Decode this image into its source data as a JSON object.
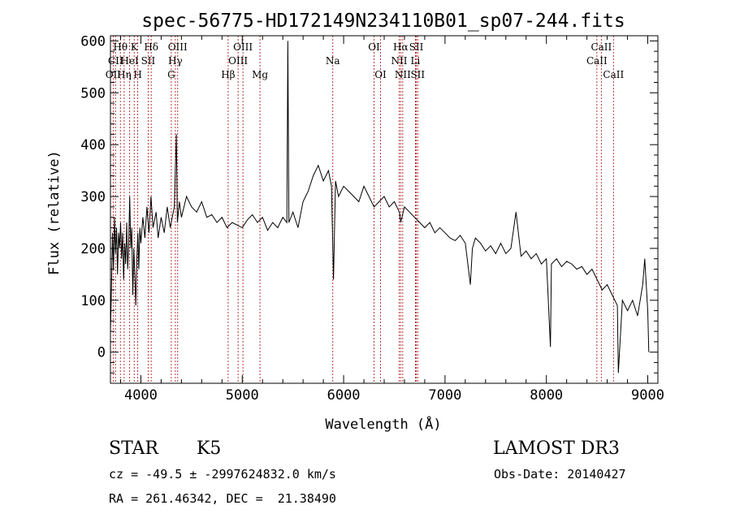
{
  "chart_data": {
    "type": "line",
    "title": "spec-56775-HD172149N234110B01_sp07-244.fits",
    "xlabel": "Wavelength (Å)",
    "ylabel": "Flux (relative)",
    "xlim": [
      3700,
      9100
    ],
    "ylim": [
      -60,
      610
    ],
    "x_ticks": [
      4000,
      5000,
      6000,
      7000,
      8000,
      9000
    ],
    "y_ticks": [
      0,
      100,
      200,
      300,
      400,
      500,
      600
    ],
    "grid": false,
    "series": [
      {
        "values": [
          [
            3700,
            40
          ],
          [
            3710,
            120
          ],
          [
            3720,
            230
          ],
          [
            3730,
            160
          ],
          [
            3740,
            260
          ],
          [
            3750,
            190
          ],
          [
            3760,
            240
          ],
          [
            3770,
            150
          ],
          [
            3780,
            230
          ],
          [
            3790,
            200
          ],
          [
            3800,
            250
          ],
          [
            3810,
            180
          ],
          [
            3820,
            230
          ],
          [
            3830,
            140
          ],
          [
            3840,
            210
          ],
          [
            3850,
            170
          ],
          [
            3860,
            250
          ],
          [
            3870,
            160
          ],
          [
            3880,
            210
          ],
          [
            3890,
            300
          ],
          [
            3900,
            200
          ],
          [
            3910,
            240
          ],
          [
            3920,
            110
          ],
          [
            3930,
            200
          ],
          [
            3940,
            150
          ],
          [
            3950,
            90
          ],
          [
            3960,
            180
          ],
          [
            3970,
            230
          ],
          [
            3980,
            160
          ],
          [
            3990,
            240
          ],
          [
            4000,
            210
          ],
          [
            4020,
            260
          ],
          [
            4040,
            220
          ],
          [
            4060,
            280
          ],
          [
            4080,
            230
          ],
          [
            4100,
            300
          ],
          [
            4120,
            240
          ],
          [
            4150,
            270
          ],
          [
            4170,
            220
          ],
          [
            4200,
            260
          ],
          [
            4230,
            230
          ],
          [
            4260,
            280
          ],
          [
            4290,
            240
          ],
          [
            4310,
            260
          ],
          [
            4330,
            280
          ],
          [
            4350,
            420
          ],
          [
            4360,
            250
          ],
          [
            4380,
            290
          ],
          [
            4400,
            260
          ],
          [
            4450,
            300
          ],
          [
            4500,
            280
          ],
          [
            4550,
            270
          ],
          [
            4600,
            290
          ],
          [
            4650,
            260
          ],
          [
            4700,
            265
          ],
          [
            4750,
            250
          ],
          [
            4800,
            260
          ],
          [
            4850,
            240
          ],
          [
            4900,
            250
          ],
          [
            4950,
            245
          ],
          [
            5000,
            240
          ],
          [
            5050,
            255
          ],
          [
            5100,
            265
          ],
          [
            5150,
            250
          ],
          [
            5200,
            260
          ],
          [
            5250,
            235
          ],
          [
            5300,
            250
          ],
          [
            5350,
            240
          ],
          [
            5400,
            260
          ],
          [
            5440,
            250
          ],
          [
            5450,
            600
          ],
          [
            5460,
            250
          ],
          [
            5500,
            270
          ],
          [
            5550,
            240
          ],
          [
            5600,
            290
          ],
          [
            5650,
            310
          ],
          [
            5700,
            340
          ],
          [
            5750,
            360
          ],
          [
            5800,
            330
          ],
          [
            5850,
            350
          ],
          [
            5880,
            320
          ],
          [
            5900,
            140
          ],
          [
            5920,
            330
          ],
          [
            5950,
            300
          ],
          [
            6000,
            320
          ],
          [
            6050,
            310
          ],
          [
            6100,
            300
          ],
          [
            6150,
            290
          ],
          [
            6200,
            320
          ],
          [
            6250,
            300
          ],
          [
            6300,
            280
          ],
          [
            6350,
            290
          ],
          [
            6400,
            300
          ],
          [
            6450,
            280
          ],
          [
            6500,
            290
          ],
          [
            6550,
            270
          ],
          [
            6563,
            250
          ],
          [
            6600,
            280
          ],
          [
            6650,
            270
          ],
          [
            6700,
            260
          ],
          [
            6750,
            250
          ],
          [
            6800,
            240
          ],
          [
            6850,
            250
          ],
          [
            6900,
            230
          ],
          [
            6950,
            240
          ],
          [
            7000,
            230
          ],
          [
            7050,
            220
          ],
          [
            7100,
            215
          ],
          [
            7150,
            225
          ],
          [
            7200,
            210
          ],
          [
            7250,
            130
          ],
          [
            7270,
            200
          ],
          [
            7300,
            220
          ],
          [
            7350,
            210
          ],
          [
            7400,
            195
          ],
          [
            7450,
            205
          ],
          [
            7500,
            190
          ],
          [
            7550,
            210
          ],
          [
            7600,
            190
          ],
          [
            7650,
            200
          ],
          [
            7700,
            270
          ],
          [
            7750,
            185
          ],
          [
            7800,
            195
          ],
          [
            7850,
            180
          ],
          [
            7900,
            190
          ],
          [
            7950,
            170
          ],
          [
            8000,
            180
          ],
          [
            8040,
            10
          ],
          [
            8050,
            170
          ],
          [
            8100,
            180
          ],
          [
            8150,
            165
          ],
          [
            8200,
            175
          ],
          [
            8250,
            170
          ],
          [
            8300,
            160
          ],
          [
            8350,
            165
          ],
          [
            8400,
            150
          ],
          [
            8450,
            160
          ],
          [
            8500,
            140
          ],
          [
            8550,
            120
          ],
          [
            8600,
            130
          ],
          [
            8650,
            110
          ],
          [
            8700,
            90
          ],
          [
            8710,
            -40
          ],
          [
            8750,
            100
          ],
          [
            8800,
            80
          ],
          [
            8850,
            100
          ],
          [
            8900,
            70
          ],
          [
            8950,
            130
          ],
          [
            8970,
            180
          ],
          [
            9000,
            80
          ],
          [
            9010,
            0
          ]
        ]
      }
    ],
    "lines": [
      {
        "wave": 3727,
        "label": "OII",
        "row": 2
      },
      {
        "wave": 3750,
        "label": "CII",
        "row": 1
      },
      {
        "wave": 3798,
        "label": "Hθ",
        "row": 0
      },
      {
        "wave": 3835,
        "label": "Hη",
        "row": 2
      },
      {
        "wave": 3889,
        "label": "HeI",
        "row": 1
      },
      {
        "wave": 3934,
        "label": "K",
        "row": 0
      },
      {
        "wave": 3969,
        "label": "H",
        "row": 2
      },
      {
        "wave": 4072,
        "label": "SII",
        "row": 1
      },
      {
        "wave": 4102,
        "label": "Hδ",
        "row": 0
      },
      {
        "wave": 4300,
        "label": "G",
        "row": 2
      },
      {
        "wave": 4340,
        "label": "Hγ",
        "row": 1
      },
      {
        "wave": 4363,
        "label": "OIII",
        "row": 0
      },
      {
        "wave": 4861,
        "label": "Hβ",
        "row": 2
      },
      {
        "wave": 4959,
        "label": "OIII",
        "row": 1
      },
      {
        "wave": 5007,
        "label": "OIII",
        "row": 0
      },
      {
        "wave": 5175,
        "label": "Mg",
        "row": 2
      },
      {
        "wave": 5893,
        "label": "Na",
        "row": 1
      },
      {
        "wave": 6300,
        "label": "OI",
        "row": 0
      },
      {
        "wave": 6364,
        "label": "OI",
        "row": 2
      },
      {
        "wave": 6548,
        "label": "NII",
        "row": 1
      },
      {
        "wave": 6563,
        "label": "Hα",
        "row": 0
      },
      {
        "wave": 6583,
        "label": "NII",
        "row": 2
      },
      {
        "wave": 6708,
        "label": "Li",
        "row": 1
      },
      {
        "wave": 6717,
        "label": "SII",
        "row": 0
      },
      {
        "wave": 6731,
        "label": "SII",
        "row": 2
      },
      {
        "wave": 8498,
        "label": "CaII",
        "row": 1
      },
      {
        "wave": 8542,
        "label": "CaII",
        "row": 0
      },
      {
        "wave": 8662,
        "label": "CaII",
        "row": 2
      }
    ],
    "line_color": "#b22222"
  },
  "info": {
    "object_class": "STAR",
    "subclass": "K5",
    "survey": "LAMOST DR3",
    "cz_text": "cz = -49.5 ± -2997624832.0 km/s",
    "obs_date": "Obs-Date: 20140427",
    "coords": "RA = 261.46342, DEC =  21.38490"
  }
}
